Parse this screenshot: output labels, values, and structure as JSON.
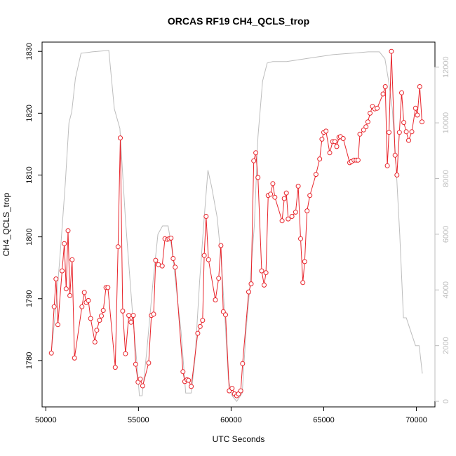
{
  "chart_data": {
    "type": "line",
    "title": "ORCAS RF19 CH4_QCLS_trop",
    "xlabel": "UTC Seconds",
    "ylabel": "CH4_QCLS_trop",
    "xlim": [
      49800,
      71000
    ],
    "ylim": [
      1772.5,
      1831.5
    ],
    "y2lim": [
      -200,
      12900
    ],
    "x_ticks": [
      50000,
      55000,
      60000,
      65000,
      70000
    ],
    "y_ticks": [
      1780,
      1790,
      1800,
      1810,
      1820,
      1830
    ],
    "y2_ticks": [
      0,
      2000,
      4000,
      6000,
      8000,
      10000,
      12000
    ],
    "x_tick_labels": [
      "50000",
      "55000",
      "60000",
      "65000",
      "70000"
    ],
    "y_tick_labels": [
      "1780",
      "1790",
      "1800",
      "1810",
      "1820",
      "1830"
    ],
    "y2_tick_labels": [
      "0",
      "2000",
      "4000",
      "6000",
      "8000",
      "10000",
      "12000"
    ],
    "grid": false,
    "series": [
      {
        "color": "#e8242b",
        "style": "line+points",
        "points": [
          [
            50300,
            1781.2
          ],
          [
            50450,
            1788.7
          ],
          [
            50550,
            1793.2
          ],
          [
            50650,
            1785.8
          ],
          [
            50880,
            1794.5
          ],
          [
            51000,
            1798.9
          ],
          [
            51100,
            1791.6
          ],
          [
            51200,
            1801.0
          ],
          [
            51300,
            1790.5
          ],
          [
            51420,
            1796.3
          ],
          [
            51550,
            1780.4
          ],
          [
            51950,
            1788.7
          ],
          [
            52080,
            1791.0
          ],
          [
            52180,
            1789.4
          ],
          [
            52300,
            1789.7
          ],
          [
            52420,
            1786.8
          ],
          [
            52650,
            1783.0
          ],
          [
            52750,
            1784.9
          ],
          [
            52900,
            1786.5
          ],
          [
            53000,
            1787.2
          ],
          [
            53100,
            1788.1
          ],
          [
            53250,
            1791.8
          ],
          [
            53350,
            1791.8
          ],
          [
            53750,
            1778.9
          ],
          [
            53900,
            1798.4
          ],
          [
            54020,
            1816.0
          ],
          [
            54150,
            1788.0
          ],
          [
            54300,
            1781.1
          ],
          [
            54480,
            1787.3
          ],
          [
            54600,
            1786.2
          ],
          [
            54720,
            1787.3
          ],
          [
            54850,
            1779.4
          ],
          [
            54980,
            1776.5
          ],
          [
            55100,
            1777.0
          ],
          [
            55230,
            1775.9
          ],
          [
            55550,
            1779.6
          ],
          [
            55700,
            1787.3
          ],
          [
            55820,
            1787.5
          ],
          [
            55930,
            1796.2
          ],
          [
            56080,
            1795.5
          ],
          [
            56280,
            1795.3
          ],
          [
            56430,
            1799.7
          ],
          [
            56560,
            1799.6
          ],
          [
            56650,
            1799.7
          ],
          [
            56760,
            1799.8
          ],
          [
            56870,
            1796.5
          ],
          [
            56980,
            1795.1
          ],
          [
            57400,
            1778.2
          ],
          [
            57500,
            1776.6
          ],
          [
            57620,
            1776.9
          ],
          [
            57700,
            1776.8
          ],
          [
            57850,
            1775.8
          ],
          [
            58200,
            1784.4
          ],
          [
            58330,
            1785.5
          ],
          [
            58460,
            1786.5
          ],
          [
            58550,
            1797.0
          ],
          [
            58650,
            1803.3
          ],
          [
            58780,
            1796.3
          ],
          [
            59150,
            1789.8
          ],
          [
            59330,
            1793.3
          ],
          [
            59450,
            1798.6
          ],
          [
            59580,
            1787.9
          ],
          [
            59700,
            1787.4
          ],
          [
            59900,
            1775.1
          ],
          [
            60050,
            1775.5
          ],
          [
            60180,
            1774.6
          ],
          [
            60300,
            1774.3
          ],
          [
            60400,
            1774.6
          ],
          [
            60520,
            1775.1
          ],
          [
            60620,
            1779.5
          ],
          [
            60950,
            1791.1
          ],
          [
            61080,
            1792.4
          ],
          [
            61220,
            1812.3
          ],
          [
            61330,
            1813.6
          ],
          [
            61450,
            1809.6
          ],
          [
            61650,
            1794.5
          ],
          [
            61780,
            1792.2
          ],
          [
            61880,
            1794.2
          ],
          [
            62000,
            1806.7
          ],
          [
            62130,
            1806.9
          ],
          [
            62250,
            1808.6
          ],
          [
            62360,
            1806.4
          ],
          [
            62750,
            1802.6
          ],
          [
            62870,
            1806.2
          ],
          [
            62980,
            1807.1
          ],
          [
            63080,
            1802.9
          ],
          [
            63280,
            1803.3
          ],
          [
            63480,
            1804.0
          ],
          [
            63620,
            1808.2
          ],
          [
            63750,
            1799.7
          ],
          [
            63870,
            1792.6
          ],
          [
            63970,
            1796.0
          ],
          [
            64100,
            1804.2
          ],
          [
            64250,
            1806.7
          ],
          [
            64580,
            1810.1
          ],
          [
            64780,
            1812.6
          ],
          [
            64900,
            1815.8
          ],
          [
            65000,
            1816.9
          ],
          [
            65120,
            1817.1
          ],
          [
            65320,
            1813.6
          ],
          [
            65480,
            1815.4
          ],
          [
            65600,
            1815.4
          ],
          [
            65700,
            1814.6
          ],
          [
            65820,
            1816.1
          ],
          [
            65900,
            1816.2
          ],
          [
            66050,
            1815.9
          ],
          [
            66400,
            1812.0
          ],
          [
            66500,
            1812.2
          ],
          [
            66630,
            1812.4
          ],
          [
            66750,
            1812.4
          ],
          [
            66850,
            1812.4
          ],
          [
            66950,
            1816.6
          ],
          [
            67150,
            1817.3
          ],
          [
            67280,
            1817.8
          ],
          [
            67380,
            1818.6
          ],
          [
            67500,
            1820.0
          ],
          [
            67630,
            1821.1
          ],
          [
            67750,
            1820.7
          ],
          [
            67880,
            1820.8
          ],
          [
            68200,
            1823.1
          ],
          [
            68320,
            1824.3
          ],
          [
            68430,
            1811.5
          ],
          [
            68520,
            1816.9
          ],
          [
            68650,
            1830.0
          ],
          [
            68850,
            1813.2
          ],
          [
            68950,
            1810.0
          ],
          [
            69080,
            1816.9
          ],
          [
            69200,
            1823.3
          ],
          [
            69320,
            1818.5
          ],
          [
            69450,
            1817.0
          ],
          [
            69580,
            1815.6
          ],
          [
            69750,
            1817.0
          ],
          [
            69950,
            1820.8
          ],
          [
            70050,
            1819.7
          ],
          [
            70180,
            1824.3
          ],
          [
            70300,
            1818.6
          ]
        ]
      },
      {
        "color": "#bdbdbd",
        "style": "line",
        "axis": "right",
        "points": [
          [
            50300,
            1800
          ],
          [
            50550,
            3400
          ],
          [
            50800,
            5500
          ],
          [
            51050,
            7800
          ],
          [
            51250,
            10000
          ],
          [
            51400,
            10400
          ],
          [
            51600,
            11600
          ],
          [
            51900,
            12500
          ],
          [
            52500,
            12550
          ],
          [
            53400,
            12600
          ],
          [
            53700,
            10500
          ],
          [
            54000,
            9800
          ],
          [
            54300,
            6500
          ],
          [
            54700,
            3000
          ],
          [
            54900,
            1500
          ],
          [
            55050,
            200
          ],
          [
            55200,
            200
          ],
          [
            55450,
            1800
          ],
          [
            55800,
            4400
          ],
          [
            56050,
            6000
          ],
          [
            56300,
            6300
          ],
          [
            56600,
            6300
          ],
          [
            56800,
            5500
          ],
          [
            57050,
            4000
          ],
          [
            57300,
            2500
          ],
          [
            57550,
            300
          ],
          [
            57850,
            300
          ],
          [
            58050,
            1500
          ],
          [
            58300,
            4300
          ],
          [
            58550,
            6600
          ],
          [
            58750,
            8300
          ],
          [
            58950,
            7700
          ],
          [
            59250,
            6600
          ],
          [
            59450,
            5200
          ],
          [
            59650,
            3200
          ],
          [
            59850,
            800
          ],
          [
            60050,
            200
          ],
          [
            60300,
            0
          ],
          [
            60600,
            300
          ],
          [
            60800,
            2500
          ],
          [
            61000,
            4000
          ],
          [
            61250,
            6300
          ],
          [
            61450,
            9500
          ],
          [
            61700,
            11500
          ],
          [
            61950,
            12150
          ],
          [
            62250,
            12200
          ],
          [
            63000,
            12200
          ],
          [
            64500,
            12350
          ],
          [
            65500,
            12450
          ],
          [
            66500,
            12500
          ],
          [
            67400,
            12550
          ],
          [
            68000,
            12550
          ],
          [
            68300,
            12300
          ],
          [
            68500,
            11500
          ],
          [
            68700,
            10500
          ],
          [
            68900,
            8500
          ],
          [
            69100,
            6000
          ],
          [
            69300,
            3000
          ],
          [
            69450,
            3000
          ],
          [
            69700,
            2500
          ],
          [
            69950,
            2000
          ],
          [
            70150,
            2000
          ],
          [
            70320,
            1000
          ]
        ]
      }
    ]
  }
}
